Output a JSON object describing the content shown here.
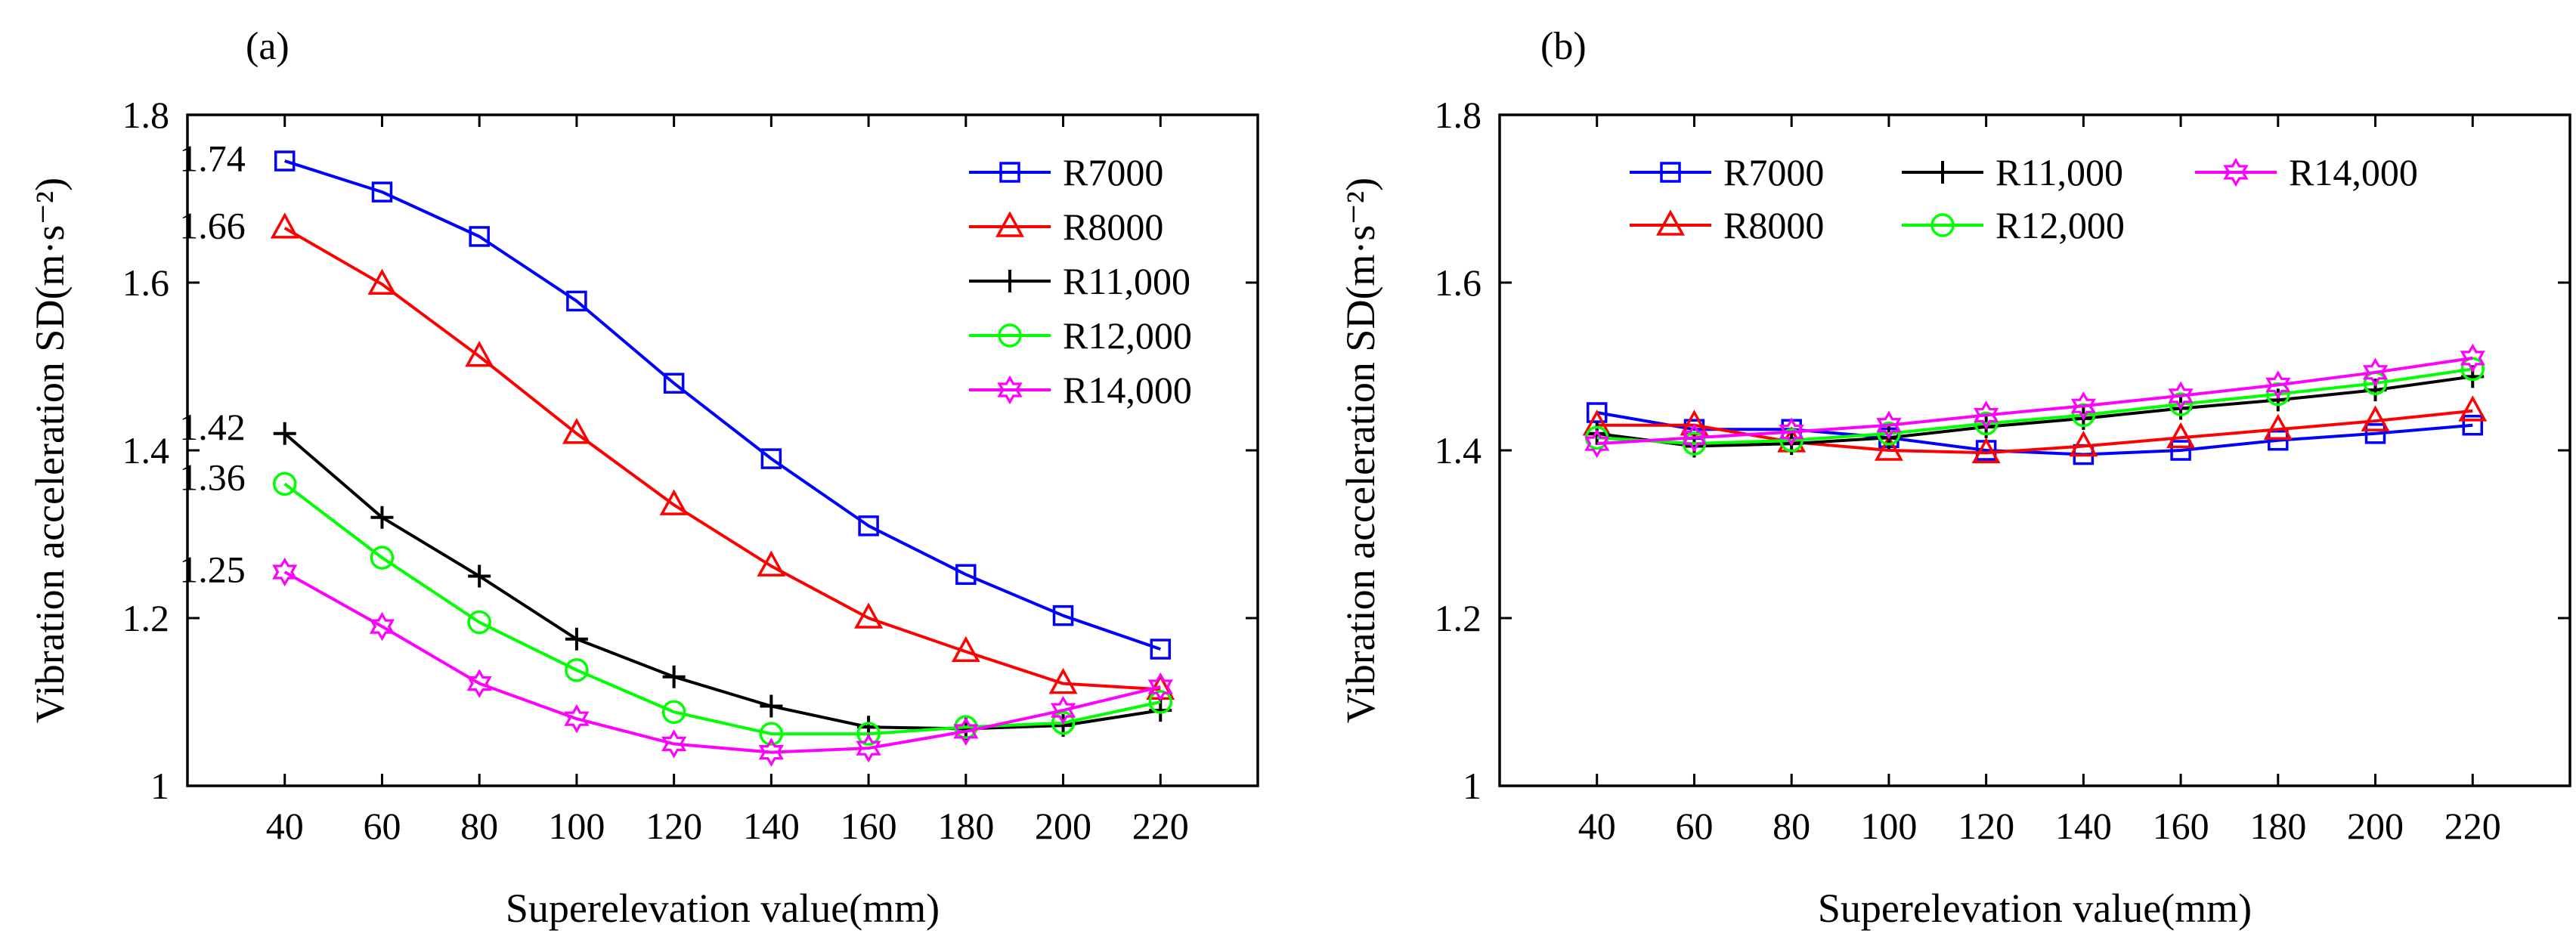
{
  "chart_data": [
    {
      "type": "line",
      "panel_label": "(a)",
      "xlabel": "Superelevation value(mm)",
      "ylabel": "Vibration acceleration SD(m·s⁻²)",
      "x": [
        40,
        60,
        80,
        100,
        120,
        140,
        160,
        180,
        200,
        220
      ],
      "xlim": [
        20,
        240
      ],
      "ylim": [
        1.0,
        1.8
      ],
      "xticks": [
        40,
        60,
        80,
        100,
        120,
        140,
        160,
        180,
        200,
        220
      ],
      "yticks": [
        1,
        1.2,
        1.4,
        1.6,
        1.8
      ],
      "ytick_labels": [
        "1",
        "1.2",
        "1.4",
        "1.6",
        "1.8"
      ],
      "grid": false,
      "legend_position": "top-right",
      "legend_layout": "single-column",
      "series": [
        {
          "name": "R7000",
          "color": "#0000ff",
          "marker": "square",
          "values": [
            1.745,
            1.708,
            1.655,
            1.578,
            1.48,
            1.39,
            1.31,
            1.252,
            1.203,
            1.163
          ]
        },
        {
          "name": "R8000",
          "color": "#ff0000",
          "marker": "triangle",
          "values": [
            1.665,
            1.598,
            1.512,
            1.42,
            1.335,
            1.262,
            1.2,
            1.16,
            1.122,
            1.115
          ]
        },
        {
          "name": "R11,000",
          "color": "#000000",
          "marker": "plus",
          "values": [
            1.42,
            1.32,
            1.25,
            1.175,
            1.13,
            1.095,
            1.07,
            1.068,
            1.072,
            1.09
          ]
        },
        {
          "name": "R12,000",
          "color": "#00ff00",
          "marker": "circle",
          "values": [
            1.36,
            1.272,
            1.195,
            1.138,
            1.088,
            1.062,
            1.062,
            1.07,
            1.075,
            1.1
          ]
        },
        {
          "name": "R14,000",
          "color": "#ff00ff",
          "marker": "hexagram",
          "values": [
            1.255,
            1.19,
            1.122,
            1.08,
            1.05,
            1.04,
            1.045,
            1.065,
            1.09,
            1.118
          ]
        }
      ],
      "annotations": [
        {
          "text": "1.74",
          "x": 40,
          "y": 1.74
        },
        {
          "text": "1.66",
          "x": 40,
          "y": 1.66
        },
        {
          "text": "1.42",
          "x": 40,
          "y": 1.42
        },
        {
          "text": "1.36",
          "x": 40,
          "y": 1.36
        },
        {
          "text": "1.25",
          "x": 40,
          "y": 1.25
        }
      ]
    },
    {
      "type": "line",
      "panel_label": "(b)",
      "xlabel": "Superelevation value(mm)",
      "ylabel": "Vibration acceleration SD(m·s⁻²)",
      "x": [
        40,
        60,
        80,
        100,
        120,
        140,
        160,
        180,
        200,
        220
      ],
      "xlim": [
        20,
        240
      ],
      "ylim": [
        1.0,
        1.8
      ],
      "xticks": [
        40,
        60,
        80,
        100,
        120,
        140,
        160,
        180,
        200,
        220
      ],
      "yticks": [
        1,
        1.2,
        1.4,
        1.6,
        1.8
      ],
      "ytick_labels": [
        "1",
        "1.2",
        "1.4",
        "1.6",
        "1.8"
      ],
      "grid": false,
      "legend_position": "top",
      "legend_layout": "three-columns",
      "series": [
        {
          "name": "R7000",
          "color": "#0000ff",
          "marker": "square",
          "values": [
            1.445,
            1.425,
            1.425,
            1.415,
            1.4,
            1.395,
            1.4,
            1.412,
            1.42,
            1.43
          ]
        },
        {
          "name": "R8000",
          "color": "#ff0000",
          "marker": "triangle",
          "values": [
            1.43,
            1.43,
            1.41,
            1.4,
            1.397,
            1.405,
            1.415,
            1.425,
            1.435,
            1.447
          ]
        },
        {
          "name": "R11,000",
          "color": "#000000",
          "marker": "plus",
          "values": [
            1.42,
            1.405,
            1.408,
            1.415,
            1.428,
            1.438,
            1.45,
            1.46,
            1.472,
            1.488
          ]
        },
        {
          "name": "R12,000",
          "color": "#00ff00",
          "marker": "circle",
          "values": [
            1.415,
            1.408,
            1.412,
            1.42,
            1.432,
            1.442,
            1.455,
            1.467,
            1.48,
            1.497
          ]
        },
        {
          "name": "R14,000",
          "color": "#ff00ff",
          "marker": "hexagram",
          "values": [
            1.408,
            1.415,
            1.422,
            1.43,
            1.442,
            1.453,
            1.465,
            1.478,
            1.493,
            1.51
          ]
        }
      ]
    }
  ]
}
